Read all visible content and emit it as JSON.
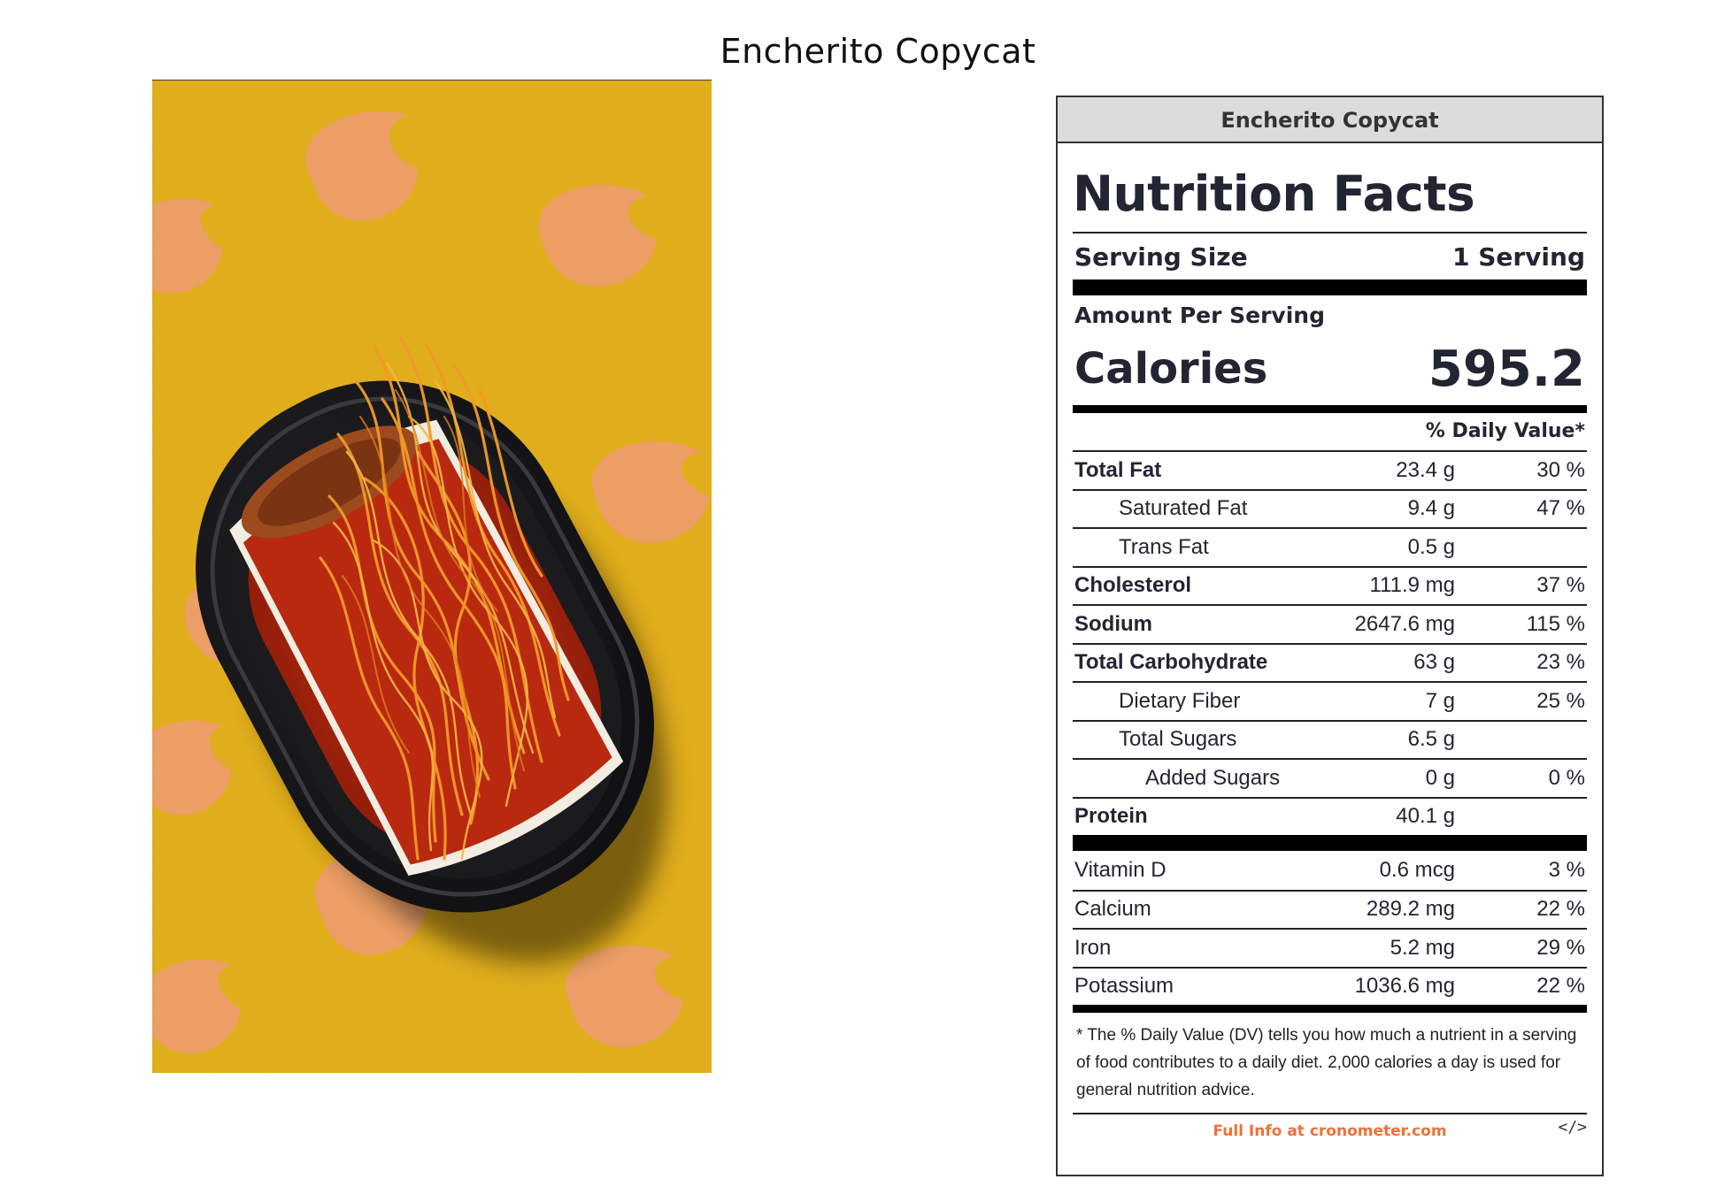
{
  "page": {
    "title": "Encherito Copycat"
  },
  "photo": {
    "subject": "encherito-in-black-tray",
    "colors": {
      "background": "#e2ad16",
      "flame_pattern": "#f09a70",
      "tray": "#1c1c1e",
      "sauce": "#b8290f",
      "cheese": "#f29a2a",
      "tortilla": "#f3ece0"
    }
  },
  "label": {
    "header": "Encherito Copycat",
    "title": "Nutrition Facts",
    "serving_size_label": "Serving Size",
    "serving_size_value": "1 Serving",
    "amount_per_serving": "Amount Per Serving",
    "calories_label": "Calories",
    "calories_value": "595.2",
    "daily_value_header": "% Daily Value*",
    "nutrients": [
      {
        "name": "Total Fat",
        "amount": "23.4 g",
        "dv": "30 %"
      },
      {
        "name": "Saturated Fat",
        "amount": "9.4 g",
        "dv": "47 %"
      },
      {
        "name": "Trans Fat",
        "amount": "0.5 g",
        "dv": ""
      },
      {
        "name": "Cholesterol",
        "amount": "111.9 mg",
        "dv": "37 %"
      },
      {
        "name": "Sodium",
        "amount": "2647.6 mg",
        "dv": "115 %"
      },
      {
        "name": "Total Carbohydrate",
        "amount": "63 g",
        "dv": "23 %"
      },
      {
        "name": "Dietary Fiber",
        "amount": "7 g",
        "dv": "25 %"
      },
      {
        "name": "Total Sugars",
        "amount": "6.5 g",
        "dv": ""
      },
      {
        "name": "Added Sugars",
        "amount": "0 g",
        "dv": "0 %"
      },
      {
        "name": "Protein",
        "amount": "40.1 g",
        "dv": ""
      }
    ],
    "vitamins": [
      {
        "name": "Vitamin D",
        "amount": "0.6 mcg",
        "dv": "3 %"
      },
      {
        "name": "Calcium",
        "amount": "289.2 mg",
        "dv": "22 %"
      },
      {
        "name": "Iron",
        "amount": "5.2 mg",
        "dv": "29 %"
      },
      {
        "name": "Potassium",
        "amount": "1036.6 mg",
        "dv": "22 %"
      }
    ],
    "footnote": "* The % Daily Value (DV) tells you how much a nutrient in a serving of food contributes to a daily diet. 2,000 calories a day is used for general nutrition advice.",
    "footer_link": "Full Info at cronometer.com",
    "embed_icon": "</>"
  }
}
